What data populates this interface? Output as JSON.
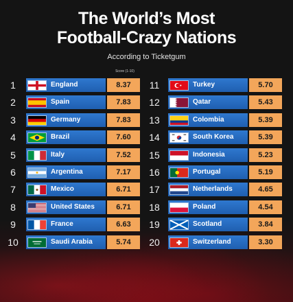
{
  "chart_data": {
    "type": "table",
    "title": "The World’s Most Football-Crazy Nations",
    "title_line1": "The World’s Most",
    "title_line2": "Football-Crazy Nations",
    "subtitle": "According to Ticketgum",
    "score_label": "Score (1-10)",
    "rows": [
      {
        "rank": "1",
        "country": "England",
        "score": 8.37,
        "flag_icon": "england-flag-icon"
      },
      {
        "rank": "2",
        "country": "Spain",
        "score": 7.83,
        "flag_icon": "spain-flag-icon"
      },
      {
        "rank": "3",
        "country": "Germany",
        "score": 7.83,
        "flag_icon": "germany-flag-icon"
      },
      {
        "rank": "4",
        "country": "Brazil",
        "score": 7.6,
        "flag_icon": "brazil-flag-icon"
      },
      {
        "rank": "5",
        "country": "Italy",
        "score": 7.52,
        "flag_icon": "italy-flag-icon"
      },
      {
        "rank": "6",
        "country": "Argentina",
        "score": 7.17,
        "flag_icon": "argentina-flag-icon"
      },
      {
        "rank": "7",
        "country": "Mexico",
        "score": 6.71,
        "flag_icon": "mexico-flag-icon"
      },
      {
        "rank": "8",
        "country": "United States",
        "score": 6.71,
        "flag_icon": "usa-flag-icon"
      },
      {
        "rank": "9",
        "country": "France",
        "score": 6.63,
        "flag_icon": "france-flag-icon"
      },
      {
        "rank": "10",
        "country": "Saudi Arabia",
        "score": 5.74,
        "flag_icon": "saudi-arabia-flag-icon"
      },
      {
        "rank": "11",
        "country": "Turkey",
        "score": 5.7,
        "flag_icon": "turkey-flag-icon"
      },
      {
        "rank": "12",
        "country": "Qatar",
        "score": 5.43,
        "flag_icon": "qatar-flag-icon"
      },
      {
        "rank": "13",
        "country": "Colombia",
        "score": 5.39,
        "flag_icon": "colombia-flag-icon"
      },
      {
        "rank": "14",
        "country": "South Korea",
        "score": 5.39,
        "flag_icon": "south-korea-flag-icon"
      },
      {
        "rank": "15",
        "country": "Indonesia",
        "score": 5.23,
        "flag_icon": "indonesia-flag-icon"
      },
      {
        "rank": "16",
        "country": "Portugal",
        "score": 5.19,
        "flag_icon": "portugal-flag-icon"
      },
      {
        "rank": "17",
        "country": "Netherlands",
        "score": 4.65,
        "flag_icon": "netherlands-flag-icon"
      },
      {
        "rank": "18",
        "country": "Poland",
        "score": 4.54,
        "flag_icon": "poland-flag-icon"
      },
      {
        "rank": "19",
        "country": "Scotland",
        "score": 3.84,
        "flag_icon": "scotland-flag-icon"
      },
      {
        "rank": "20",
        "country": "Switzerland",
        "score": 3.3,
        "flag_icon": "switzerland-flag-icon"
      }
    ]
  },
  "colors": {
    "background": "#141414",
    "bar": "#2f78cf",
    "score_box": "#f3a65a",
    "accent_red": "#a0141e"
  }
}
